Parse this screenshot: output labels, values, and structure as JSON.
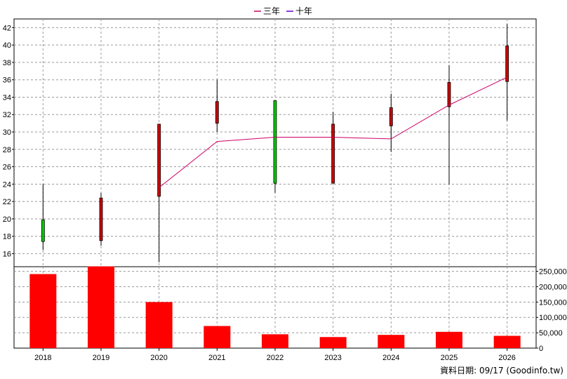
{
  "legend": [
    {
      "label": "三年",
      "color": "#cc0066"
    },
    {
      "label": "十年",
      "color": "#6600cc"
    }
  ],
  "footer": "資料日期: 09/17  (Goodinfo.tw)",
  "colors": {
    "up": "#cc0000",
    "down": "#00cc00",
    "volume": "#ff0000",
    "grid": "#999999"
  },
  "chart_data": [
    {
      "type": "candlestick",
      "categories": [
        "2018",
        "2019",
        "2020",
        "2021",
        "2022",
        "2023",
        "2024",
        "2025",
        "2026"
      ],
      "ylim": [
        14.5,
        43
      ],
      "yticks": [
        16,
        18,
        20,
        22,
        24,
        26,
        28,
        30,
        32,
        34,
        36,
        38,
        40,
        42
      ],
      "grid": true,
      "candles": [
        {
          "open": 17.4,
          "close": 19.9,
          "high": 24.0,
          "low": 16.4,
          "direction": "down"
        },
        {
          "open": 22.4,
          "close": 17.5,
          "high": 23.0,
          "low": 16.9,
          "direction": "up"
        },
        {
          "open": 30.9,
          "close": 22.6,
          "high": 30.9,
          "low": 15.0,
          "direction": "up"
        },
        {
          "open": 33.5,
          "close": 31.0,
          "high": 36.0,
          "low": 30.0,
          "direction": "up"
        },
        {
          "open": 24.1,
          "close": 33.6,
          "high": 33.6,
          "low": 23.0,
          "direction": "down"
        },
        {
          "open": 30.9,
          "close": 24.1,
          "high": 32.3,
          "low": 24.1,
          "direction": "up"
        },
        {
          "open": 32.8,
          "close": 30.7,
          "high": 34.4,
          "low": 27.7,
          "direction": "up"
        },
        {
          "open": 35.7,
          "close": 32.9,
          "high": 37.7,
          "low": 24.0,
          "direction": "up"
        },
        {
          "open": 39.9,
          "close": 35.8,
          "high": 42.4,
          "low": 31.3,
          "direction": "up"
        }
      ],
      "series": [
        {
          "name": "三年",
          "x": [
            "2020",
            "2021",
            "2022",
            "2023",
            "2024",
            "2025",
            "2026"
          ],
          "values": [
            23.6,
            28.9,
            29.4,
            29.4,
            29.2,
            33.1,
            36.3
          ]
        }
      ]
    },
    {
      "type": "bar",
      "categories": [
        "2018",
        "2019",
        "2020",
        "2021",
        "2022",
        "2023",
        "2024",
        "2025",
        "2026"
      ],
      "values": [
        241000,
        266000,
        150000,
        72000,
        45000,
        36000,
        43000,
        53000,
        40000
      ],
      "ylim": [
        0,
        265000
      ],
      "yticks": [
        0,
        50000,
        100000,
        150000,
        200000,
        250000
      ],
      "ytick_labels": [
        "0",
        "50,000",
        "100,000",
        "150,000",
        "200,000",
        "250,000"
      ],
      "grid": true
    }
  ]
}
